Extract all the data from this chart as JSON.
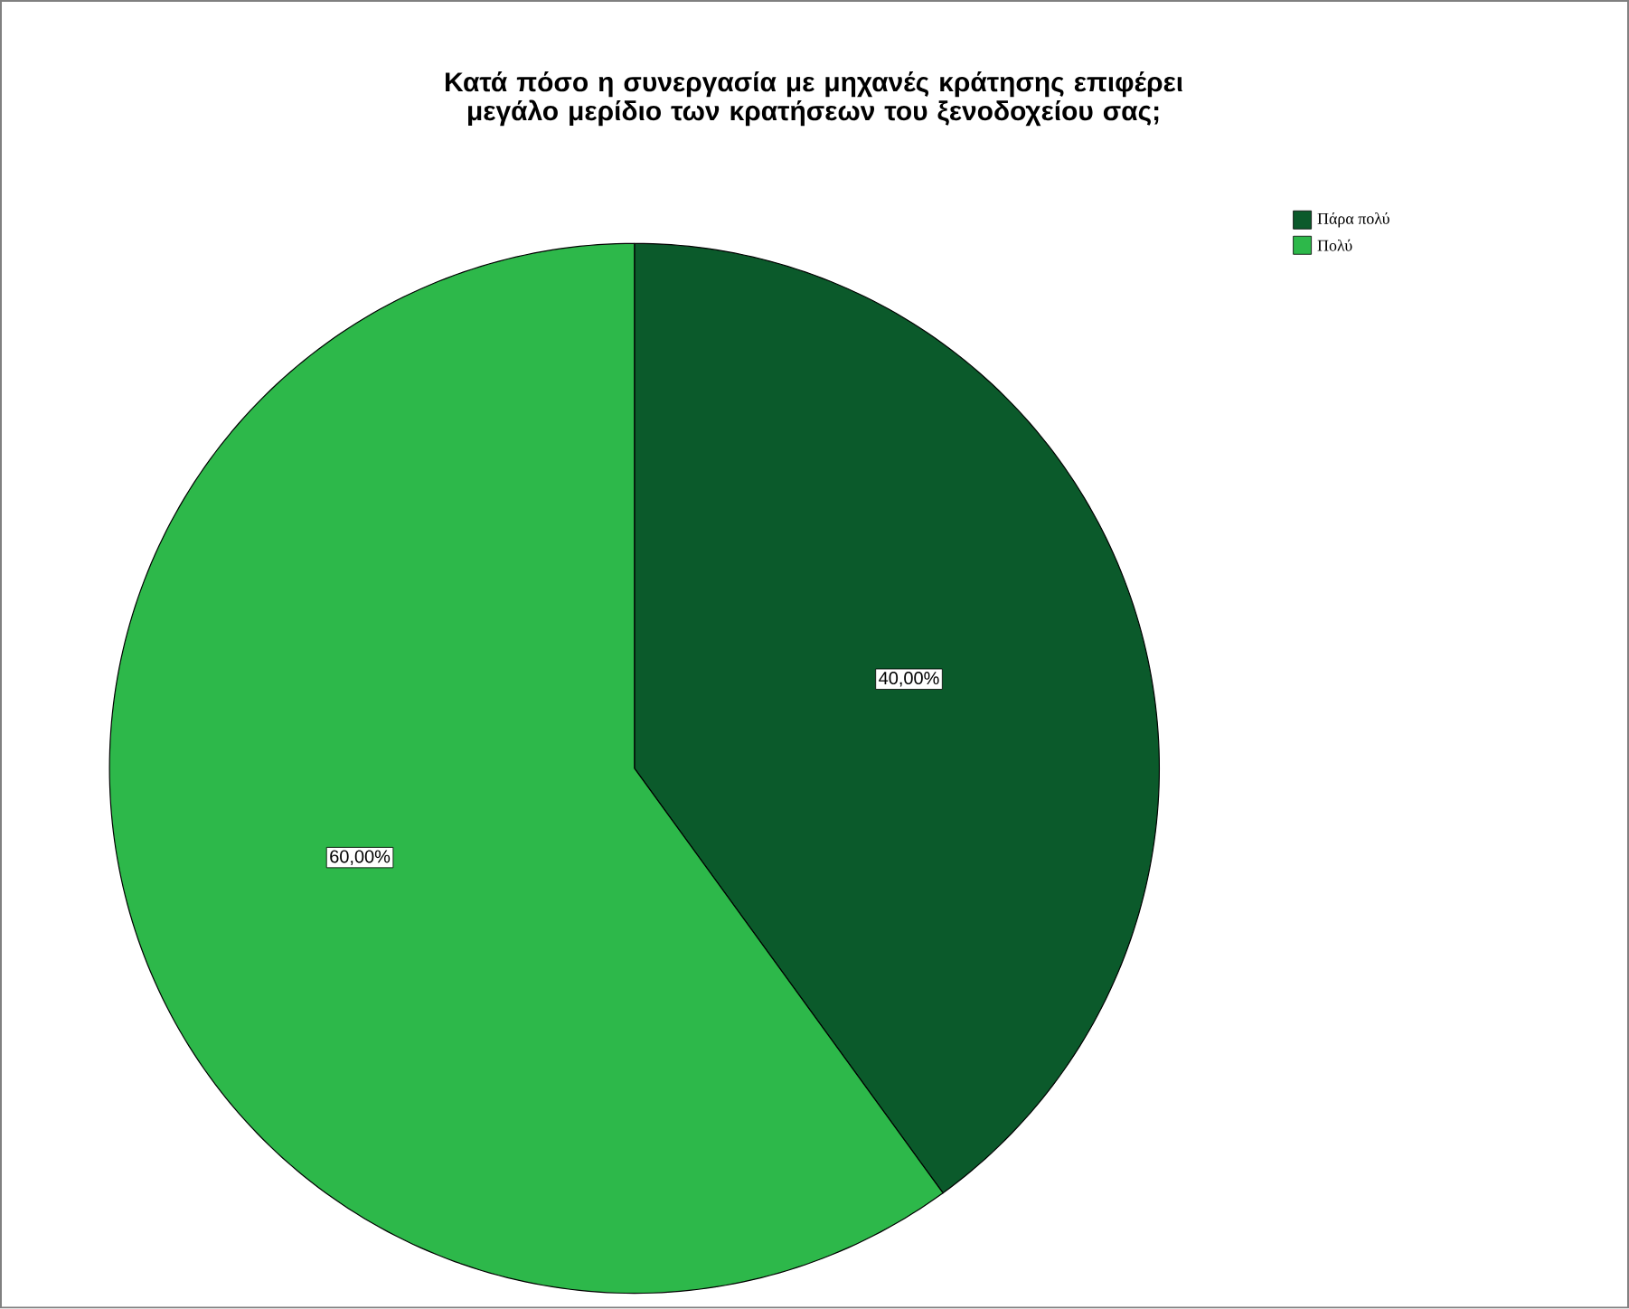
{
  "chart_data": {
    "type": "pie",
    "title": "Κατά πόσο η συνεργασία με μηχανές κράτησης επιφέρει μεγάλο μερίδιο των κρατήσεων του ξενοδοχείου σας;",
    "categories": [
      "Πάρα πολύ",
      "Πολύ"
    ],
    "values": [
      40,
      60
    ],
    "colors": [
      "#0b5a2b",
      "#2db84a"
    ],
    "value_labels": [
      "40,00%",
      "60,00%"
    ],
    "legend": "top right"
  }
}
